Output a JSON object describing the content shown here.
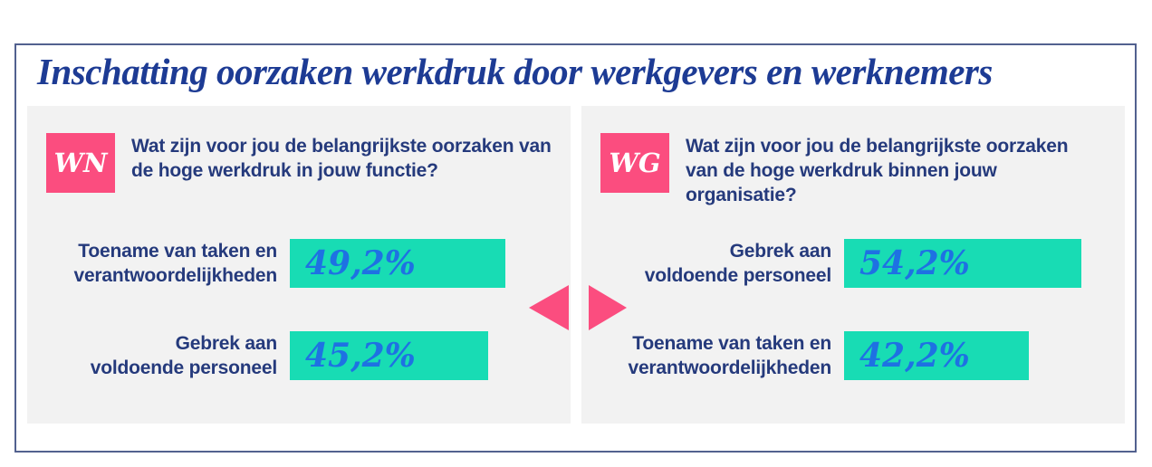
{
  "title": "Inschatting oorzaken werkdruk door werkgevers en werknemers",
  "colors": {
    "title_navy": "#1d3b94",
    "body_navy": "#253a7c",
    "bar_teal": "#18dcb4",
    "percent_blue": "#1e71e3",
    "accent_pink": "#fb4d7f",
    "panel_background": "#f2f2f2",
    "frame_border": "#52618f"
  },
  "panels": [
    {
      "badge": "WN",
      "question": "Wat zijn voor jou de belangrijkste oorzaken van\nde hoge werkdruk in jouw functie?",
      "bars": [
        {
          "label": "Toename van taken en\nverantwoordelijkheden",
          "value": "49,2%"
        },
        {
          "label": "Gebrek aan\nvoldoende personeel",
          "value": "45,2%"
        }
      ],
      "arrow_direction": "left"
    },
    {
      "badge": "WG",
      "question": "Wat zijn voor jou de belangrijkste oorzaken\nvan de hoge werkdruk binnen jouw\norganisatie?",
      "bars": [
        {
          "label": "Gebrek aan\nvoldoende personeel",
          "value": "54,2%"
        },
        {
          "label": "Toename van taken en\nverantwoordelijkheden",
          "value": "42,2%"
        }
      ],
      "arrow_direction": "right"
    }
  ],
  "chart_data": [
    {
      "type": "bar",
      "orientation": "horizontal",
      "title": "WN — Wat zijn voor jou de belangrijkste oorzaken van de hoge werkdruk in jouw functie?",
      "categories": [
        "Toename van taken en verantwoordelijkheden",
        "Gebrek aan voldoende personeel"
      ],
      "values": [
        49.2,
        45.2
      ],
      "value_labels": [
        "49,2%",
        "45,2%"
      ],
      "xlim": [
        0,
        62
      ],
      "grid": false,
      "bar_color": "#18dcb4"
    },
    {
      "type": "bar",
      "orientation": "horizontal",
      "title": "WG — Wat zijn voor jou de belangrijkste oorzaken van de hoge werkdruk binnen jouw organisatie?",
      "categories": [
        "Gebrek aan voldoende personeel",
        "Toename van taken en verantwoordelijkheden"
      ],
      "values": [
        54.2,
        42.2
      ],
      "value_labels": [
        "54,2%",
        "42,2%"
      ],
      "xlim": [
        0,
        62
      ],
      "grid": false,
      "bar_color": "#18dcb4"
    }
  ]
}
